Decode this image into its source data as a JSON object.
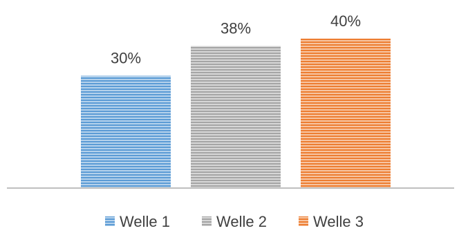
{
  "chart_data": {
    "type": "bar",
    "categories": [
      "Welle 1",
      "Welle 2",
      "Welle 3"
    ],
    "values": [
      30,
      38,
      40
    ],
    "value_labels": [
      "30%",
      "38%",
      "40%"
    ],
    "series": [
      {
        "name": "Welle 1",
        "value": 30,
        "color": "#5B9BD5"
      },
      {
        "name": "Welle 2",
        "value": 38,
        "color": "#A5A5A5"
      },
      {
        "name": "Welle 3",
        "value": 40,
        "color": "#ED7D31"
      }
    ],
    "ylim": [
      0,
      42
    ],
    "grid": false,
    "legend_position": "bottom",
    "title": "",
    "xlabel": "",
    "ylabel": ""
  }
}
